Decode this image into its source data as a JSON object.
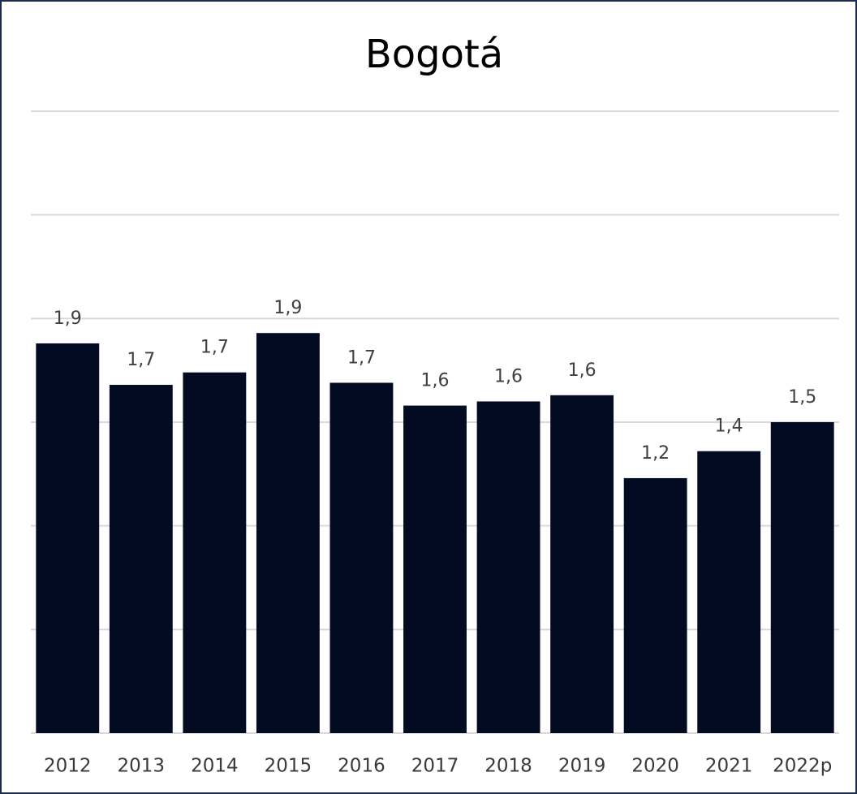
{
  "chart_data": {
    "type": "bar",
    "title": "Bogotá",
    "categories": [
      "2012",
      "2013",
      "2014",
      "2015",
      "2016",
      "2017",
      "2018",
      "2019",
      "2020",
      "2021",
      "2022p"
    ],
    "values": [
      1.88,
      1.68,
      1.74,
      1.93,
      1.69,
      1.58,
      1.6,
      1.63,
      1.23,
      1.36,
      1.5
    ],
    "value_labels": [
      "1,9",
      "1,7",
      "1,7",
      "1,9",
      "1,7",
      "1,6",
      "1,6",
      "1,6",
      "1,2",
      "1,4",
      "1,5"
    ],
    "color": "#020b22",
    "ylim": [
      0,
      3
    ],
    "yticks": [
      0,
      0.5,
      1,
      1.5,
      2,
      2.5,
      3
    ],
    "grid": true
  }
}
